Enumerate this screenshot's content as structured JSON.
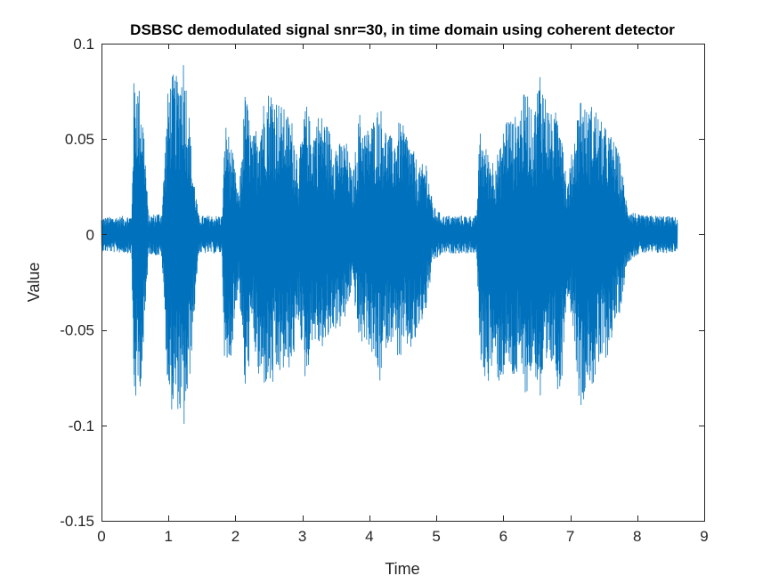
{
  "chart_data": {
    "type": "line",
    "title": "DSBSC demodulated signal snr=30, in time domain using coherent detector",
    "xlabel": "Time",
    "ylabel": "Value",
    "xlim": [
      0,
      9
    ],
    "ylim": [
      -0.15,
      0.1
    ],
    "x_ticks": [
      0,
      1,
      2,
      3,
      4,
      5,
      6,
      7,
      8,
      9
    ],
    "y_ticks": [
      -0.15,
      -0.1,
      -0.05,
      0,
      0.05,
      0.1
    ],
    "x_tick_labels": [
      "0",
      "1",
      "2",
      "3",
      "4",
      "5",
      "6",
      "7",
      "8",
      "9"
    ],
    "y_tick_labels": [
      "-0.15",
      "-0.1",
      "-0.05",
      "0",
      "0.05",
      "0.1"
    ],
    "grid": false,
    "series": [
      {
        "color": "#0072BD",
        "x_start": 0,
        "x_end": 8.6,
        "envelope": {
          "x": [
            0.0,
            0.45,
            0.48,
            0.52,
            0.58,
            0.63,
            0.7,
            0.9,
            1.0,
            1.08,
            1.15,
            1.22,
            1.3,
            1.35,
            1.45,
            1.8,
            1.85,
            1.95,
            2.05,
            2.15,
            2.25,
            2.35,
            2.45,
            2.55,
            2.65,
            2.75,
            2.85,
            2.95,
            3.05,
            3.15,
            3.25,
            3.35,
            3.45,
            3.55,
            3.65,
            3.75,
            3.85,
            3.95,
            4.05,
            4.15,
            4.25,
            4.35,
            4.45,
            4.55,
            4.65,
            4.75,
            4.85,
            4.95,
            5.1,
            5.6,
            5.65,
            5.75,
            5.85,
            5.95,
            6.05,
            6.15,
            6.25,
            6.35,
            6.45,
            6.55,
            6.65,
            6.75,
            6.85,
            6.95,
            7.05,
            7.15,
            7.25,
            7.35,
            7.45,
            7.55,
            7.65,
            7.75,
            7.85,
            7.95,
            8.05,
            8.2,
            8.4,
            8.6
          ],
          "upper": [
            0.009,
            0.01,
            0.08,
            0.085,
            0.075,
            0.06,
            0.01,
            0.012,
            0.08,
            0.085,
            0.082,
            0.097,
            0.07,
            0.04,
            0.01,
            0.01,
            0.06,
            0.045,
            0.02,
            0.078,
            0.05,
            0.062,
            0.075,
            0.078,
            0.07,
            0.065,
            0.06,
            0.04,
            0.07,
            0.055,
            0.065,
            0.06,
            0.052,
            0.048,
            0.05,
            0.03,
            0.065,
            0.055,
            0.06,
            0.07,
            0.056,
            0.05,
            0.06,
            0.055,
            0.045,
            0.035,
            0.04,
            0.015,
            0.01,
            0.01,
            0.055,
            0.045,
            0.04,
            0.045,
            0.065,
            0.06,
            0.068,
            0.078,
            0.06,
            0.09,
            0.07,
            0.06,
            0.075,
            0.025,
            0.05,
            0.075,
            0.065,
            0.07,
            0.06,
            0.055,
            0.05,
            0.04,
            0.015,
            0.012,
            0.01,
            0.01,
            0.01,
            0.009
          ],
          "lower": [
            -0.009,
            -0.01,
            -0.085,
            -0.09,
            -0.08,
            -0.065,
            -0.01,
            -0.012,
            -0.09,
            -0.094,
            -0.092,
            -0.107,
            -0.085,
            -0.06,
            -0.01,
            -0.01,
            -0.085,
            -0.06,
            -0.025,
            -0.09,
            -0.05,
            -0.08,
            -0.08,
            -0.082,
            -0.075,
            -0.072,
            -0.07,
            -0.045,
            -0.08,
            -0.055,
            -0.06,
            -0.06,
            -0.05,
            -0.05,
            -0.045,
            -0.025,
            -0.06,
            -0.055,
            -0.065,
            -0.08,
            -0.06,
            -0.055,
            -0.068,
            -0.06,
            -0.062,
            -0.05,
            -0.04,
            -0.015,
            -0.01,
            -0.01,
            -0.065,
            -0.08,
            -0.07,
            -0.08,
            -0.07,
            -0.078,
            -0.075,
            -0.085,
            -0.068,
            -0.09,
            -0.08,
            -0.068,
            -0.09,
            -0.03,
            -0.05,
            -0.095,
            -0.078,
            -0.08,
            -0.07,
            -0.065,
            -0.05,
            -0.04,
            -0.015,
            -0.012,
            -0.01,
            -0.01,
            -0.01,
            -0.009
          ]
        }
      }
    ]
  }
}
